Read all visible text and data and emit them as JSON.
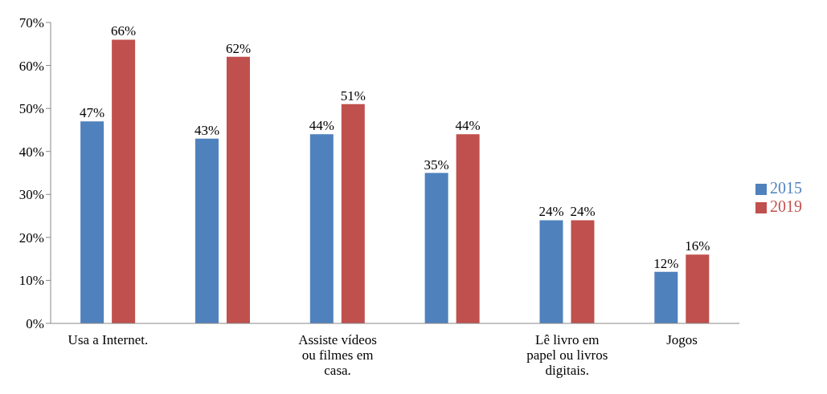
{
  "chart_data": {
    "type": "bar",
    "categories": [
      "Usa a Internet.",
      null,
      "Assiste vídeos ou filmes em casa.",
      null,
      "Lê livro em papel ou livros digitais.",
      "Jogos"
    ],
    "series": [
      {
        "name": "2015",
        "color": "#4f81bd",
        "values": [
          47,
          43,
          44,
          35,
          24,
          12
        ]
      },
      {
        "name": "2019",
        "color": "#c0504d",
        "values": [
          66,
          62,
          51,
          44,
          24,
          16
        ]
      }
    ],
    "ylim": [
      0,
      70
    ],
    "yticks": [
      {
        "value": 0,
        "label": "0%"
      },
      {
        "value": 10,
        "label": "10%"
      },
      {
        "value": 20,
        "label": "20%"
      },
      {
        "value": 30,
        "label": "30%"
      },
      {
        "value": 40,
        "label": "40%"
      },
      {
        "value": 50,
        "label": "50%"
      },
      {
        "value": 60,
        "label": "60%"
      },
      {
        "value": 70,
        "label": "70%"
      }
    ],
    "value_labels": [
      [
        "47%",
        "43%",
        "44%",
        "35%",
        "24%",
        "12%"
      ],
      [
        "66%",
        "62%",
        "51%",
        "44%",
        "24%",
        "16%"
      ]
    ],
    "legend": "right"
  }
}
